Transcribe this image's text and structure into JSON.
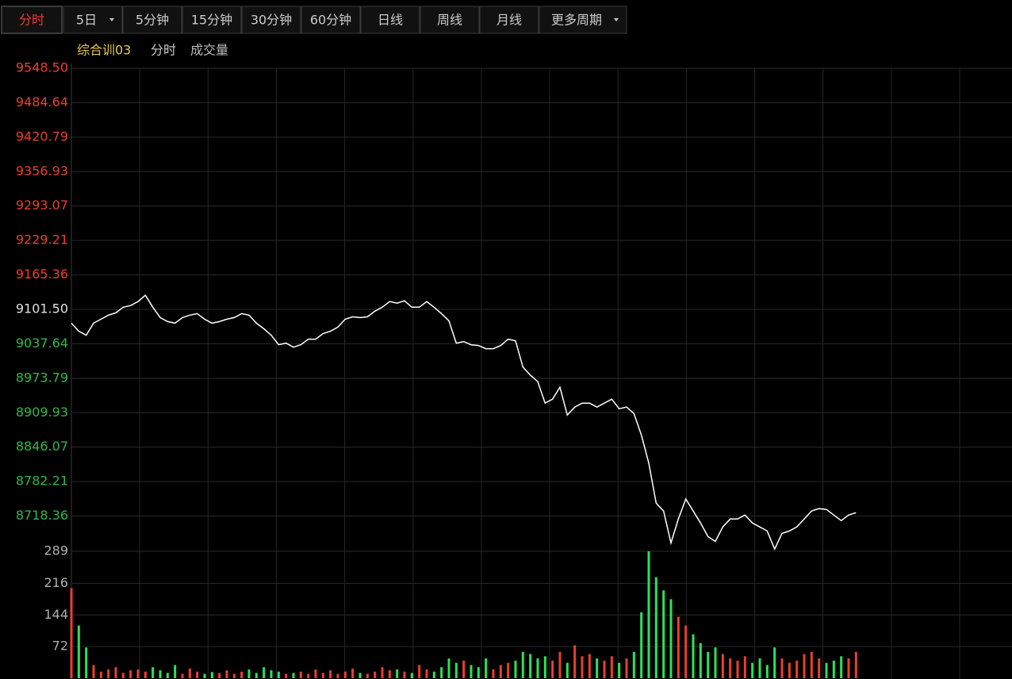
{
  "toolbar": {
    "tabs": [
      "分时",
      "5日",
      "5分钟",
      "15分钟",
      "30分钟",
      "60分钟",
      "日线",
      "周线",
      "月线",
      "更多周期"
    ],
    "active": 0
  },
  "legend": {
    "symbol": "综合训03",
    "period": "分时",
    "indicator": "成交量"
  },
  "chart_data": [
    {
      "type": "line",
      "color": "#ffffff",
      "baseline": 9101.5,
      "up_color": "#e8402f",
      "down_color": "#2fb84a",
      "xlim": [
        0,
        240
      ],
      "x": [
        0,
        2,
        4,
        6,
        8,
        10,
        12,
        14,
        16,
        18,
        20,
        22,
        24,
        26,
        28,
        30,
        32,
        34,
        36,
        38,
        40,
        42,
        44,
        46,
        48,
        50,
        52,
        54,
        56,
        58,
        60,
        62,
        64,
        66,
        68,
        70,
        72,
        74,
        76,
        78,
        80,
        82,
        84,
        86,
        88,
        90,
        92,
        94,
        96,
        98,
        100,
        102,
        104,
        106,
        108,
        110,
        112,
        114,
        116,
        118,
        120,
        122,
        124,
        126,
        128,
        130,
        132,
        134,
        136,
        138,
        140,
        142,
        144,
        146,
        148,
        150,
        152,
        154,
        156,
        158,
        160,
        162,
        164,
        166,
        168,
        170,
        172,
        174,
        176,
        178,
        180,
        182,
        184,
        186,
        188,
        190,
        192,
        194,
        196,
        198,
        200,
        202,
        204,
        206,
        208,
        210,
        212
      ],
      "values": [
        9075.9,
        9061.1,
        9053.6,
        9075.9,
        9083.3,
        9090.7,
        9095.1,
        9105.5,
        9108.5,
        9115.9,
        9127.7,
        9105.5,
        9086.2,
        9078.8,
        9075.9,
        9086.2,
        9090.7,
        9093.6,
        9083.3,
        9075.9,
        9078.8,
        9083.3,
        9086.2,
        9093.6,
        9090.7,
        9075.9,
        9065.5,
        9053.6,
        9035.9,
        9038.8,
        9031.4,
        9035.9,
        9046.2,
        9046.2,
        9056.6,
        9061.1,
        9068.5,
        9083.3,
        9087.7,
        9086.2,
        9087.7,
        9098.1,
        9105.5,
        9115.9,
        9112.9,
        9117.4,
        9105.5,
        9105.5,
        9115.9,
        9105.5,
        9093.6,
        9080.3,
        9038.8,
        9041.8,
        9035.9,
        9034.4,
        9028.5,
        9028.5,
        9034.4,
        9046.2,
        9043.3,
        8994.4,
        8979.6,
        8967.7,
        8927.7,
        8935.1,
        8957.3,
        8905.5,
        8920.3,
        8927.7,
        8927.7,
        8920.3,
        8927.7,
        8935.1,
        8917.3,
        8920.3,
        8908.4,
        8868.4,
        8816.6,
        8742.5,
        8727.7,
        8668.4,
        8712.9,
        8749.9,
        8727.7,
        8705.5,
        8680.3,
        8671.4,
        8698.1,
        8712.9,
        8712.9,
        8720.3,
        8705.5,
        8698.1,
        8690.7,
        8657.0,
        8686.2,
        8690.7,
        8698.1,
        8712.9,
        8727.7,
        8732.1,
        8730.7,
        8720.3,
        8709.9,
        8720.3,
        8724.7
      ],
      "ylim": [
        8654.5,
        9548.5
      ],
      "yticks": [
        {
          "value": 9548.5,
          "label": "9548.50"
        },
        9484.64,
        9420.79,
        9356.93,
        9293.07,
        9229.21,
        9165.36,
        {
          "value": 9101.5,
          "label": "9101.50"
        },
        9037.64,
        8973.79,
        8909.93,
        8846.07,
        8782.21,
        8718.36
      ],
      "grid": true
    },
    {
      "type": "bar",
      "up_color": "#e8402f",
      "down_color": "#2ee05a",
      "tick_color": "#b0b0b0",
      "xlim": [
        0,
        240
      ],
      "x": [
        0,
        2,
        4,
        6,
        8,
        10,
        12,
        14,
        16,
        18,
        20,
        22,
        24,
        26,
        28,
        30,
        32,
        34,
        36,
        38,
        40,
        42,
        44,
        46,
        48,
        50,
        52,
        54,
        56,
        58,
        60,
        62,
        64,
        66,
        68,
        70,
        72,
        74,
        76,
        78,
        80,
        82,
        84,
        86,
        88,
        90,
        92,
        94,
        96,
        98,
        100,
        102,
        104,
        106,
        108,
        110,
        112,
        114,
        116,
        118,
        120,
        122,
        124,
        126,
        128,
        130,
        132,
        134,
        136,
        138,
        140,
        142,
        144,
        146,
        148,
        150,
        152,
        154,
        156,
        158,
        160,
        162,
        164,
        166,
        168,
        170,
        172,
        174,
        176,
        178,
        180,
        182,
        184,
        186,
        188,
        190,
        192,
        194,
        196,
        198,
        200,
        202,
        204,
        206,
        208,
        210,
        212
      ],
      "values": [
        205,
        120,
        70,
        30,
        15,
        20,
        25,
        12,
        18,
        20,
        15,
        25,
        18,
        12,
        30,
        10,
        22,
        15,
        10,
        14,
        12,
        18,
        10,
        15,
        20,
        12,
        25,
        18,
        15,
        10,
        12,
        15,
        10,
        20,
        12,
        18,
        10,
        15,
        22,
        12,
        10,
        15,
        25,
        18,
        20,
        15,
        12,
        30,
        20,
        15,
        25,
        45,
        35,
        40,
        30,
        25,
        45,
        20,
        30,
        35,
        40,
        60,
        55,
        45,
        50,
        40,
        60,
        35,
        75,
        50,
        55,
        45,
        40,
        50,
        35,
        45,
        60,
        150,
        289,
        230,
        200,
        180,
        140,
        120,
        100,
        80,
        60,
        70,
        55,
        45,
        40,
        50,
        35,
        45,
        30,
        70,
        45,
        35,
        40,
        55,
        60,
        45,
        35,
        40,
        50,
        45,
        60
      ],
      "ylim": [
        0,
        289
      ],
      "yticks": [
        72,
        144,
        216,
        289
      ],
      "grid": true
    }
  ]
}
